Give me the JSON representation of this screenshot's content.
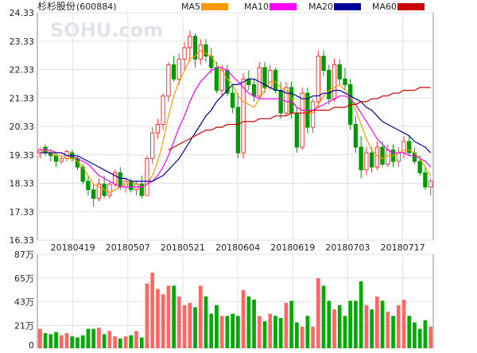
{
  "header": {
    "stock_name": "杉杉股份",
    "stock_code": "(600884)",
    "watermark": "SOHU.com"
  },
  "legend": [
    {
      "label": "MA5",
      "color": "#ff9900"
    },
    {
      "label": "MA10",
      "color": "#ff00ff"
    },
    {
      "label": "MA20",
      "color": "#000099"
    },
    {
      "label": "MA60",
      "color": "#cc0000"
    }
  ],
  "chart_data": [
    {
      "type": "candlestick",
      "title": "杉杉股份(600884)",
      "ylim": [
        16.33,
        24.33
      ],
      "y_ticks": [
        "24.33",
        "23.33",
        "22.33",
        "21.33",
        "20.33",
        "19.33",
        "18.33",
        "17.33",
        "16.33"
      ],
      "x_tick_labels": [
        "20180419",
        "20180507",
        "20180521",
        "20180604",
        "20180619",
        "20180703",
        "20180717"
      ],
      "up_color": "#ff3333",
      "down_color": "#009900",
      "candles": [
        [
          19.4,
          19.6,
          19.2,
          19.5
        ],
        [
          19.6,
          19.7,
          19.3,
          19.4
        ],
        [
          19.4,
          19.5,
          19.1,
          19.3
        ],
        [
          19.3,
          19.4,
          18.9,
          19.1
        ],
        [
          19.1,
          19.3,
          19.0,
          19.2
        ],
        [
          19.2,
          19.5,
          19.1,
          19.45
        ],
        [
          19.4,
          19.5,
          19.1,
          19.2
        ],
        [
          19.2,
          19.3,
          18.8,
          18.9
        ],
        [
          18.9,
          19.0,
          18.3,
          18.4
        ],
        [
          18.4,
          18.6,
          17.9,
          18.1
        ],
        [
          18.1,
          18.3,
          17.5,
          17.8
        ],
        [
          17.8,
          18.5,
          17.7,
          18.3
        ],
        [
          18.3,
          18.6,
          17.8,
          17.9
        ],
        [
          17.9,
          18.4,
          17.8,
          18.3
        ],
        [
          18.3,
          18.8,
          18.2,
          18.7
        ],
        [
          18.7,
          18.9,
          18.1,
          18.2
        ],
        [
          18.2,
          18.5,
          18.0,
          18.4
        ],
        [
          18.4,
          18.5,
          18.0,
          18.1
        ],
        [
          18.1,
          18.4,
          17.9,
          18.3
        ],
        [
          18.3,
          18.6,
          17.8,
          17.9
        ],
        [
          17.9,
          19.3,
          17.9,
          19.2
        ],
        [
          19.2,
          20.3,
          19.0,
          20.1
        ],
        [
          20.1,
          20.6,
          19.9,
          20.4
        ],
        [
          20.4,
          21.5,
          20.2,
          21.4
        ],
        [
          21.4,
          22.6,
          21.2,
          22.5
        ],
        [
          22.5,
          22.8,
          21.9,
          22.0
        ],
        [
          22.0,
          22.9,
          21.8,
          22.7
        ],
        [
          22.7,
          23.3,
          22.3,
          23.1
        ],
        [
          23.1,
          23.7,
          22.6,
          23.5
        ],
        [
          23.5,
          23.6,
          22.4,
          22.7
        ],
        [
          22.7,
          23.4,
          22.5,
          23.2
        ],
        [
          23.2,
          23.4,
          22.6,
          22.8
        ],
        [
          22.8,
          23.1,
          22.2,
          22.4
        ],
        [
          22.4,
          22.6,
          21.5,
          21.6
        ],
        [
          21.6,
          22.5,
          21.4,
          22.3
        ],
        [
          22.3,
          22.5,
          21.4,
          21.5
        ],
        [
          21.5,
          21.8,
          20.8,
          21.0
        ],
        [
          21.0,
          21.5,
          19.2,
          19.4
        ],
        [
          19.4,
          22.2,
          19.2,
          22.0
        ],
        [
          22.0,
          22.3,
          21.6,
          21.8
        ],
        [
          21.8,
          22.0,
          21.2,
          21.4
        ],
        [
          21.4,
          22.6,
          21.3,
          22.4
        ],
        [
          22.4,
          22.6,
          21.5,
          21.7
        ],
        [
          21.7,
          22.5,
          21.6,
          22.3
        ],
        [
          22.3,
          22.4,
          21.5,
          21.6
        ],
        [
          21.6,
          21.9,
          20.6,
          20.8
        ],
        [
          20.8,
          21.9,
          20.7,
          21.7
        ],
        [
          21.7,
          21.9,
          20.6,
          20.8
        ],
        [
          20.8,
          21.0,
          19.4,
          19.6
        ],
        [
          19.6,
          21.7,
          19.5,
          21.5
        ],
        [
          21.5,
          21.7,
          20.1,
          20.3
        ],
        [
          20.3,
          21.3,
          20.1,
          21.2
        ],
        [
          21.2,
          23.0,
          21.0,
          22.8
        ],
        [
          22.8,
          23.0,
          22.1,
          22.3
        ],
        [
          22.3,
          22.5,
          21.1,
          21.3
        ],
        [
          21.3,
          22.7,
          21.2,
          22.5
        ],
        [
          22.5,
          22.7,
          21.8,
          22.0
        ],
        [
          22.0,
          22.4,
          21.6,
          21.8
        ],
        [
          21.8,
          22.0,
          20.2,
          20.4
        ],
        [
          20.4,
          20.7,
          19.4,
          19.6
        ],
        [
          19.6,
          20.0,
          18.5,
          18.8
        ],
        [
          18.8,
          19.6,
          18.6,
          19.4
        ],
        [
          19.4,
          19.6,
          18.7,
          18.9
        ],
        [
          18.9,
          19.8,
          18.8,
          19.6
        ],
        [
          19.6,
          19.8,
          18.9,
          19.0
        ],
        [
          19.0,
          19.7,
          18.9,
          19.5
        ],
        [
          19.5,
          19.7,
          18.9,
          19.1
        ],
        [
          19.1,
          19.6,
          18.9,
          19.4
        ],
        [
          19.4,
          20.0,
          19.2,
          19.8
        ],
        [
          19.8,
          20.0,
          19.3,
          19.4
        ],
        [
          19.4,
          19.6,
          19.0,
          19.1
        ],
        [
          19.1,
          19.3,
          18.6,
          18.7
        ],
        [
          18.7,
          18.9,
          18.1,
          18.2
        ],
        [
          18.2,
          18.5,
          17.9,
          18.4
        ]
      ],
      "ma_series": [
        {
          "name": "MA5",
          "color": "#ff9900",
          "values": [
            19.5,
            19.5,
            19.4,
            19.3,
            19.3,
            19.2,
            19.2,
            19.1,
            18.9,
            18.6,
            18.3,
            18.2,
            18.1,
            18.0,
            18.1,
            18.2,
            18.3,
            18.4,
            18.3,
            18.2,
            18.3,
            18.6,
            19.1,
            19.8,
            20.7,
            21.4,
            21.9,
            22.3,
            22.7,
            22.8,
            23.0,
            22.9,
            22.8,
            22.5,
            22.3,
            22.0,
            21.8,
            21.4,
            21.2,
            21.1,
            21.0,
            21.3,
            21.6,
            21.9,
            21.9,
            21.7,
            21.6,
            21.3,
            21.0,
            20.9,
            20.8,
            20.8,
            21.1,
            21.4,
            21.6,
            21.7,
            21.8,
            21.6,
            21.4,
            20.9,
            20.4,
            19.9,
            19.5,
            19.3,
            19.2,
            19.3,
            19.3,
            19.4,
            19.5,
            19.5,
            19.4,
            19.2,
            18.9,
            18.6
          ]
        },
        {
          "name": "MA10",
          "color": "#ff00ff",
          "values": [
            19.5,
            19.5,
            19.5,
            19.4,
            19.4,
            19.3,
            19.3,
            19.2,
            19.1,
            19.0,
            18.8,
            18.6,
            18.5,
            18.4,
            18.3,
            18.2,
            18.2,
            18.2,
            18.2,
            18.2,
            18.3,
            18.4,
            18.6,
            18.9,
            19.3,
            19.8,
            20.3,
            20.7,
            21.2,
            21.6,
            21.9,
            22.1,
            22.3,
            22.4,
            22.4,
            22.3,
            22.1,
            21.9,
            21.7,
            21.5,
            21.4,
            21.3,
            21.3,
            21.3,
            21.3,
            21.3,
            21.2,
            21.2,
            21.0,
            20.9,
            20.9,
            20.9,
            21.0,
            21.1,
            21.2,
            21.3,
            21.4,
            21.4,
            21.3,
            21.1,
            20.8,
            20.5,
            20.2,
            19.9,
            19.7,
            19.5,
            19.4,
            19.4,
            19.4,
            19.3,
            19.3,
            19.2,
            19.1,
            18.9
          ]
        },
        {
          "name": "MA20",
          "color": "#000099",
          "values": [
            19.4,
            19.4,
            19.4,
            19.4,
            19.4,
            19.3,
            19.3,
            19.3,
            19.2,
            19.1,
            19.0,
            18.9,
            18.8,
            18.7,
            18.6,
            18.5,
            18.5,
            18.4,
            18.4,
            18.4,
            18.4,
            18.4,
            18.5,
            18.6,
            18.8,
            19.0,
            19.2,
            19.5,
            19.8,
            20.1,
            20.4,
            20.7,
            20.9,
            21.2,
            21.4,
            21.6,
            21.8,
            21.8,
            21.9,
            22.0,
            22.0,
            21.9,
            21.8,
            21.7,
            21.6,
            21.6,
            21.5,
            21.5,
            21.4,
            21.3,
            21.3,
            21.4,
            21.4,
            21.5,
            21.5,
            21.6,
            21.6,
            21.5,
            21.4,
            21.3,
            21.2,
            21.0,
            20.9,
            20.7,
            20.5,
            20.4,
            20.3,
            20.2,
            20.1,
            20.0,
            19.8,
            19.7,
            19.6,
            19.4
          ]
        },
        {
          "name": "MA60",
          "color": "#cc0000",
          "values": [
            null,
            null,
            null,
            null,
            null,
            null,
            null,
            null,
            null,
            null,
            null,
            null,
            null,
            null,
            null,
            null,
            null,
            null,
            null,
            null,
            null,
            null,
            null,
            null,
            19.5,
            19.6,
            19.7,
            19.8,
            19.9,
            20.0,
            20.1,
            20.2,
            20.2,
            20.3,
            20.3,
            20.4,
            20.4,
            20.4,
            20.5,
            20.5,
            20.5,
            20.6,
            20.6,
            20.6,
            20.7,
            20.7,
            20.7,
            20.8,
            20.8,
            20.8,
            20.8,
            20.9,
            20.9,
            20.9,
            20.9,
            21.0,
            21.0,
            21.0,
            21.1,
            21.1,
            21.2,
            21.2,
            21.3,
            21.3,
            21.4,
            21.4,
            21.5,
            21.5,
            21.6,
            21.6,
            21.6,
            21.7,
            21.7,
            21.7
          ]
        }
      ]
    },
    {
      "type": "bar",
      "title": "",
      "ylim": [
        0,
        87
      ],
      "y_ticks": [
        "87万",
        "65万",
        "43万",
        "21万",
        "0"
      ],
      "y_tick_values": [
        87,
        65,
        43,
        21,
        0
      ],
      "unit": "万",
      "up_color": "#ff6666",
      "down_color": "#00aa00",
      "values": [
        18,
        14,
        13,
        15,
        12,
        14,
        11,
        10,
        12,
        18,
        18,
        19,
        13,
        16,
        11,
        9,
        11,
        12,
        16,
        10,
        60,
        70,
        55,
        50,
        58,
        58,
        48,
        40,
        42,
        38,
        58,
        48,
        32,
        40,
        30,
        30,
        32,
        30,
        54,
        48,
        45,
        30,
        25,
        32,
        30,
        28,
        42,
        44,
        24,
        20,
        30,
        20,
        65,
        58,
        44,
        36,
        40,
        30,
        44,
        44,
        62,
        40,
        36,
        48,
        44,
        34,
        30,
        40,
        45,
        30,
        24,
        18,
        26,
        20
      ]
    }
  ]
}
